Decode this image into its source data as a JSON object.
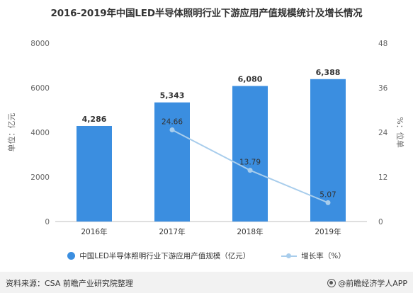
{
  "chart_data": {
    "type": "bar",
    "title": "2016-2019年中国LED半导体照明行业下游应用产值规模统计及增长情况",
    "categories": [
      "2016年",
      "2017年",
      "2018年",
      "2019年"
    ],
    "series": [
      {
        "name": "中国LED半导体照明行业下游应用产值规模（亿元）",
        "type": "bar",
        "axis": "left",
        "values": [
          4286,
          5343,
          6080,
          6388
        ],
        "labels": [
          "4,286",
          "5,343",
          "6,080",
          "6,388"
        ],
        "color": "#3b8ee0"
      },
      {
        "name": "增长率（%）",
        "type": "line",
        "axis": "right",
        "x": [
          "2017年",
          "2018年",
          "2019年"
        ],
        "values": [
          24.66,
          13.79,
          5.07
        ],
        "labels": [
          "24.66",
          "13.79",
          "5.07"
        ],
        "color": "#a8cdec"
      }
    ],
    "ylabel": "单位：亿元",
    "y2label": "%：位单",
    "ylim": [
      0,
      8000
    ],
    "y2lim": [
      0,
      48
    ],
    "yticks": [
      "0",
      "2000",
      "4000",
      "6000",
      "8000"
    ],
    "y2ticks": [
      "0",
      "12",
      "24",
      "36",
      "48"
    ],
    "yticks_values": [
      0,
      2000,
      4000,
      6000,
      8000
    ],
    "y2ticks_values": [
      0,
      12,
      24,
      36,
      48
    ],
    "grid": false,
    "legend_position": "bottom"
  },
  "footer": {
    "source": "资料来源：CSA 前瞻产业研究院整理",
    "brand": "@前瞻经济学人APP"
  }
}
